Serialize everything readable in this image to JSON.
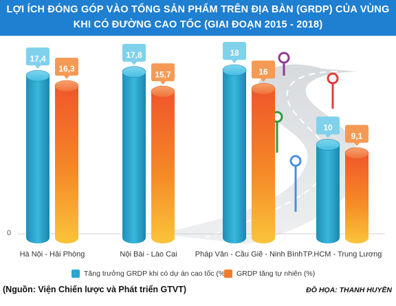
{
  "title_line1": "LỢI ÍCH ĐÓNG GÓP VÀO TỔNG SẢN PHẨM TRÊN ĐỊA BÀN (GRDP) CỦA VÙNG",
  "title_line2": "KHI CÓ ĐƯỜNG CAO TỐC (GIAI ĐOẠN 2015 - 2018)",
  "source": "(Nguồn: Viện Chiến lược và Phát triển GTVT)",
  "credit": "ĐỒ HỌA: THANH HUYỀN",
  "colors": {
    "header": "#1f7fd0",
    "teal": "#2aa6cf",
    "orange": "#f07b2a",
    "road": "#b8bcc0"
  },
  "chart_data": {
    "type": "bar",
    "title": "LỢI ÍCH ĐÓNG GÓP VÀO TỔNG SẢN PHẨM TRÊN ĐỊA BÀN (GRDP) CỦA VÙNG KHI CÓ ĐƯỜNG CAO TỐC (GIAI ĐOẠN 2015 - 2018)",
    "categories": [
      "Hà Nội - Hải Phòng",
      "Nội Bài - Lào Cai",
      "Pháp Vân - Cầu Giẽ - Ninh Bình",
      "TP.HCM - Trung Lương"
    ],
    "series": [
      {
        "name": "Tăng trưởng GRDP khi có dự án cao tốc (%)",
        "values": [
          17.4,
          17.8,
          18,
          10
        ],
        "labels": [
          "17,4",
          "17,8",
          "18",
          "10"
        ]
      },
      {
        "name": "GRDP tăng tự nhiên (%)",
        "values": [
          16.3,
          15.7,
          16,
          9.1
        ],
        "labels": [
          "16,3",
          "15,7",
          "16",
          "9,1"
        ]
      }
    ],
    "yaxis_tick": "0",
    "ylim": [
      0,
      18
    ],
    "legend_position": "bottom",
    "grid": false
  }
}
